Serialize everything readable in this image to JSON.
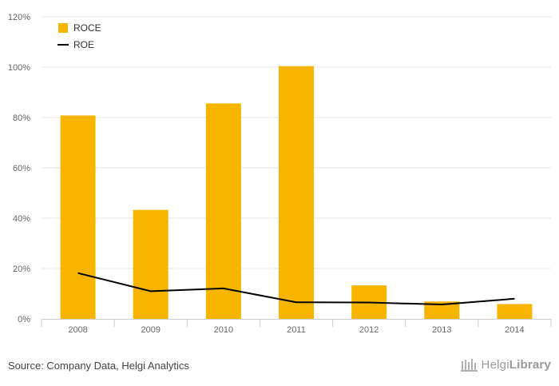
{
  "chart_data": {
    "type": "bar",
    "title": "",
    "xlabel": "",
    "ylabel": "",
    "categories": [
      "2008",
      "2009",
      "2010",
      "2011",
      "2012",
      "2013",
      "2014"
    ],
    "ylim": [
      0,
      120
    ],
    "yticks": [
      0,
      20,
      40,
      60,
      80,
      100,
      120
    ],
    "ytick_labels": [
      "0%",
      "20%",
      "40%",
      "60%",
      "80%",
      "100%",
      "120%"
    ],
    "grid": true,
    "legend_position": "top-left",
    "series": [
      {
        "name": "ROCE",
        "kind": "bar",
        "color": "#F7B500",
        "values": [
          80.8,
          43.3,
          85.6,
          100.4,
          13.3,
          6.9,
          5.9
        ]
      },
      {
        "name": "ROE",
        "kind": "line",
        "color": "#000000",
        "values": [
          18.2,
          11.0,
          12.1,
          6.6,
          6.5,
          5.7,
          8.0
        ]
      }
    ]
  },
  "source_text": "Source: Company Data, Helgi Analytics",
  "brand": {
    "prefix": "Helgi",
    "suffix": "Library"
  }
}
